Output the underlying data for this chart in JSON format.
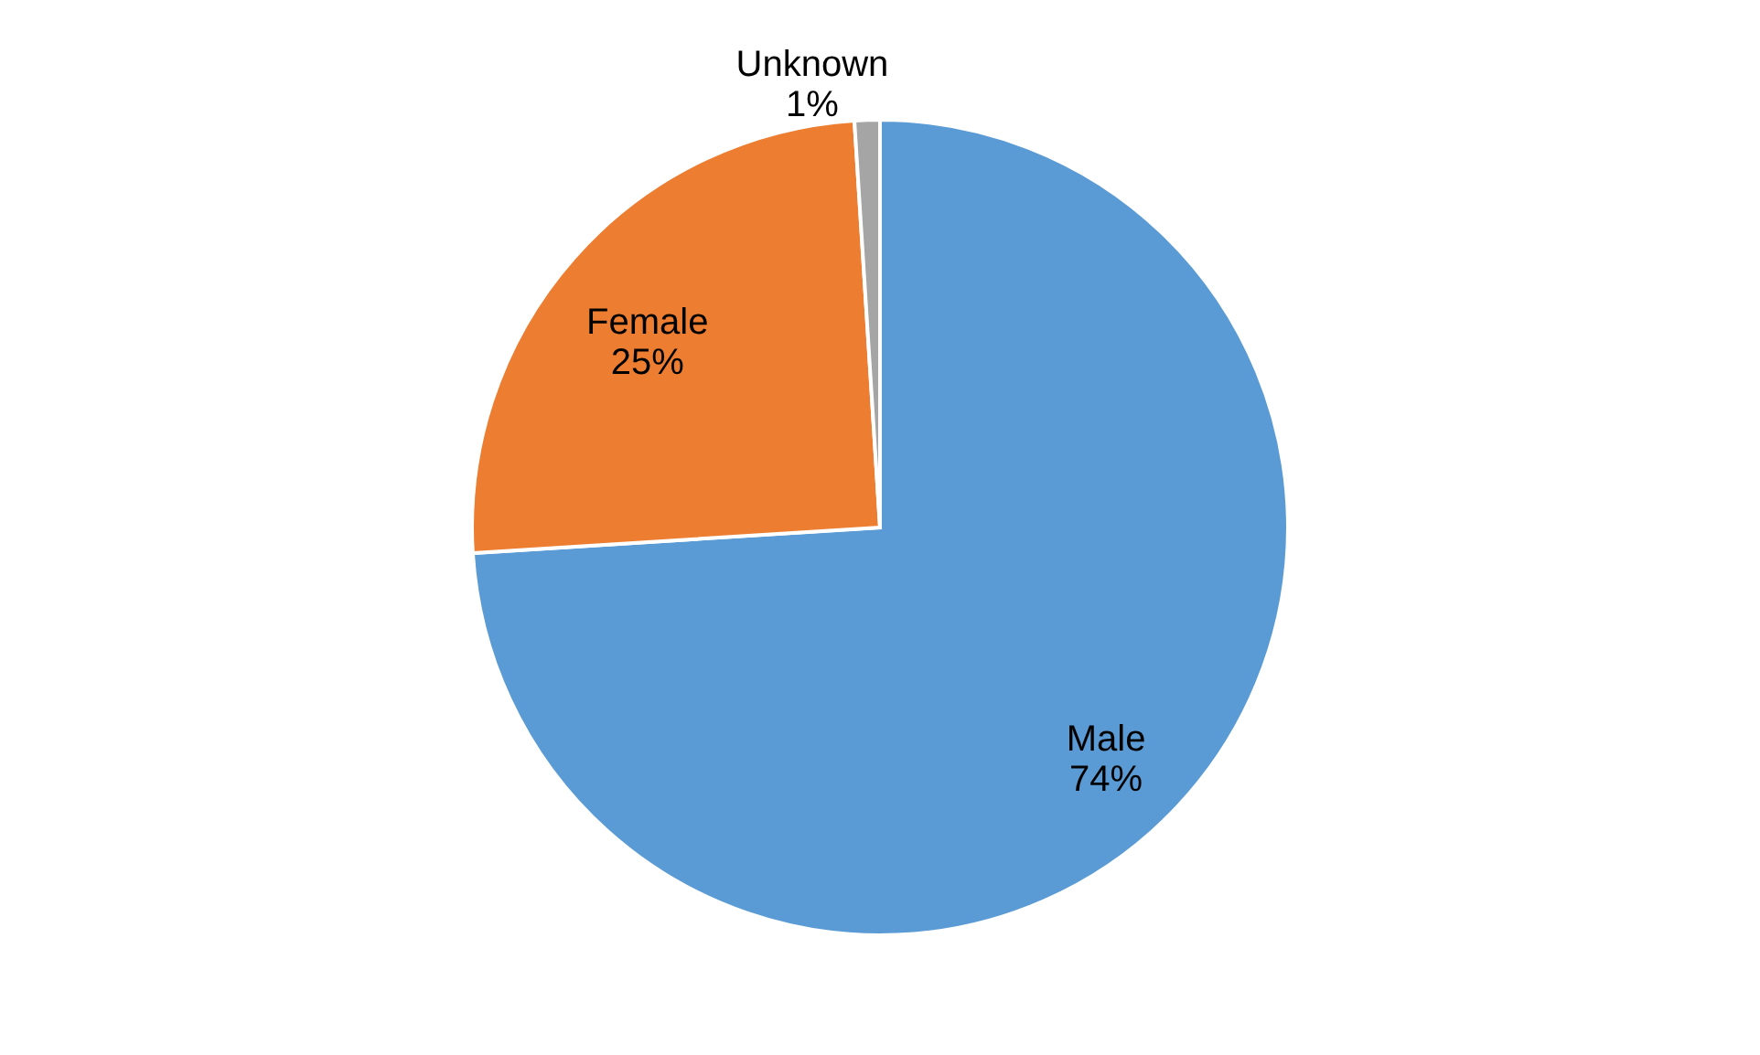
{
  "chart_data": {
    "type": "pie",
    "categories": [
      "Male",
      "Female",
      "Unknown"
    ],
    "values": [
      74,
      25,
      1
    ],
    "value_labels": [
      "74%",
      "25%",
      "1%"
    ],
    "colors": [
      "#5b9bd5",
      "#ed7d31",
      "#a5a5a5"
    ]
  }
}
